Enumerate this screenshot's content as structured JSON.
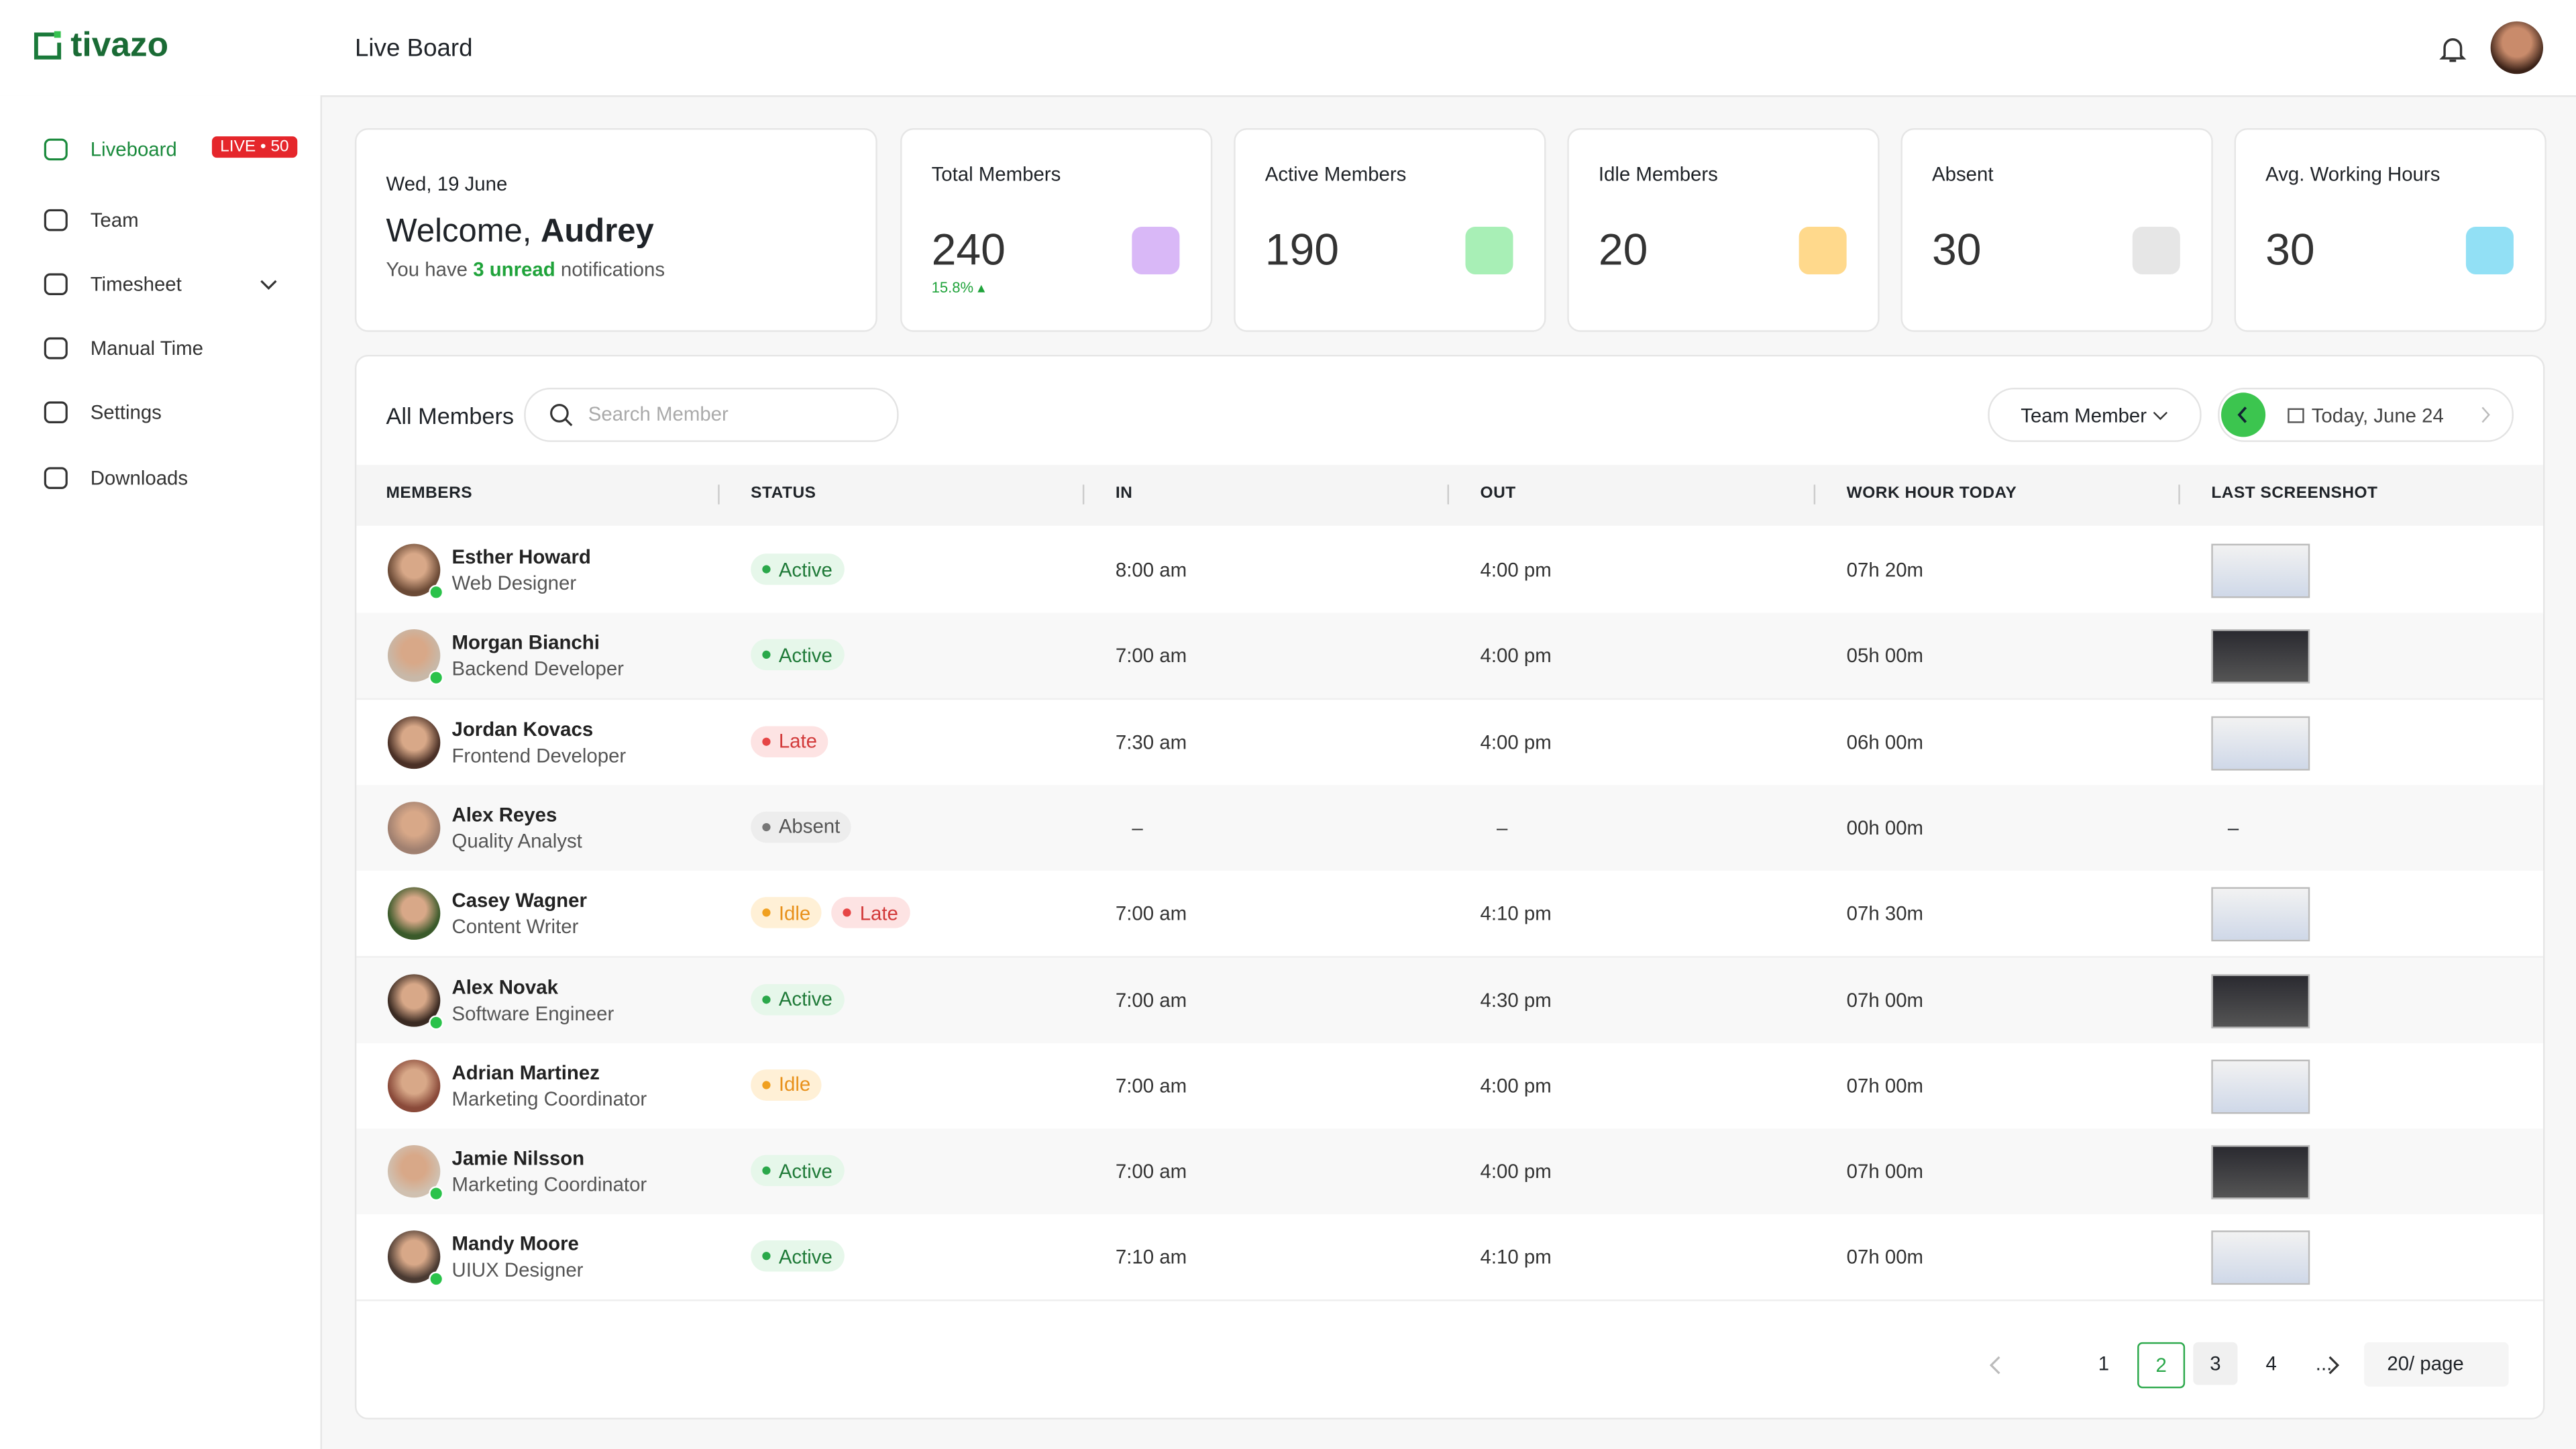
{
  "header": {
    "logo": "tivazo",
    "title": "Live Board"
  },
  "sidebar": {
    "items": [
      {
        "label": "Liveboard",
        "badge": "LIVE • 50",
        "active": true
      },
      {
        "label": "Team"
      },
      {
        "label": "Timesheet",
        "expandable": true
      },
      {
        "label": "Manual Time"
      },
      {
        "label": "Settings"
      },
      {
        "label": "Downloads"
      }
    ]
  },
  "welcome": {
    "date": "Wed, 19 June",
    "greeting": "Welcome,",
    "name": "Audrey",
    "note_prefix": "You have",
    "note_highlight": "3 unread",
    "note_suffix": "notifications"
  },
  "stats": [
    {
      "label": "Total Members",
      "value": 240,
      "change": "15.8%"
    },
    {
      "label": "Active Members",
      "value": 190
    },
    {
      "label": "Idle Members",
      "value": 20
    },
    {
      "label": "Absent",
      "value": 30
    },
    {
      "label": "Avg. Working Hours",
      "value": 30
    }
  ],
  "table": {
    "title": "All Members",
    "search_placeholder": "Search Member",
    "filter": "Team Member",
    "date": "Today, June 24",
    "columns": [
      "MEMBERS",
      "STATUS",
      "IN",
      "OUT",
      "WORK HOUR TODAY",
      "LAST SCREENSHOT"
    ],
    "rows": [
      {
        "name": "Esther Howard",
        "role": "Web Designer",
        "status": [
          {
            "label": "Active",
            "tone": "green"
          }
        ],
        "in": "8:00 am",
        "out": "4:00 pm",
        "hours": "07h 20m"
      },
      {
        "name": "Morgan Bianchi",
        "role": "Backend Developer",
        "status": [
          {
            "label": "Active",
            "tone": "green"
          }
        ],
        "in": "7:00 am",
        "out": "4:00 pm",
        "hours": "05h 00m"
      },
      {
        "name": "Jordan Kovacs",
        "role": "Frontend Developer",
        "status": [
          {
            "label": "Late",
            "tone": "red"
          }
        ],
        "in": "7:30 am",
        "out": "4:00 pm",
        "hours": "06h 00m"
      },
      {
        "name": "Alex Reyes",
        "role": "Quality Analyst",
        "status": [
          {
            "label": "Absent",
            "tone": "gray"
          }
        ],
        "in": "–",
        "out": "–",
        "hours": "00h 00m",
        "screenshot": "–"
      },
      {
        "name": "Casey Wagner",
        "role": "Content Writer",
        "status": [
          {
            "label": "Idle",
            "tone": "orange"
          },
          {
            "label": "Late",
            "tone": "red"
          }
        ],
        "in": "7:00 am",
        "out": "4:10 pm",
        "hours": "07h 30m"
      },
      {
        "name": "Alex Novak",
        "role": "Software Engineer",
        "status": [
          {
            "label": "Active",
            "tone": "green"
          }
        ],
        "in": "7:00 am",
        "out": "4:30 pm",
        "hours": "07h 00m"
      },
      {
        "name": "Adrian Martinez",
        "role": "Marketing Coordinator",
        "status": [
          {
            "label": "Idle",
            "tone": "orange"
          }
        ],
        "in": "7:00 am",
        "out": "4:00 pm",
        "hours": "07h 00m"
      },
      {
        "name": "Jamie Nilsson",
        "role": "Marketing Coordinator",
        "status": [
          {
            "label": "Active",
            "tone": "green"
          }
        ],
        "in": "7:00 am",
        "out": "4:00 pm",
        "hours": "07h 00m"
      },
      {
        "name": "Mandy Moore",
        "role": "UIUX Designer",
        "status": [
          {
            "label": "Active",
            "tone": "green"
          }
        ],
        "in": "7:10 am",
        "out": "4:10 pm",
        "hours": "07h 00m"
      }
    ]
  },
  "pagination": {
    "pages": [
      "1",
      "2",
      "3",
      "4",
      "..."
    ],
    "active_page": "2",
    "page_size": "20/ page"
  }
}
